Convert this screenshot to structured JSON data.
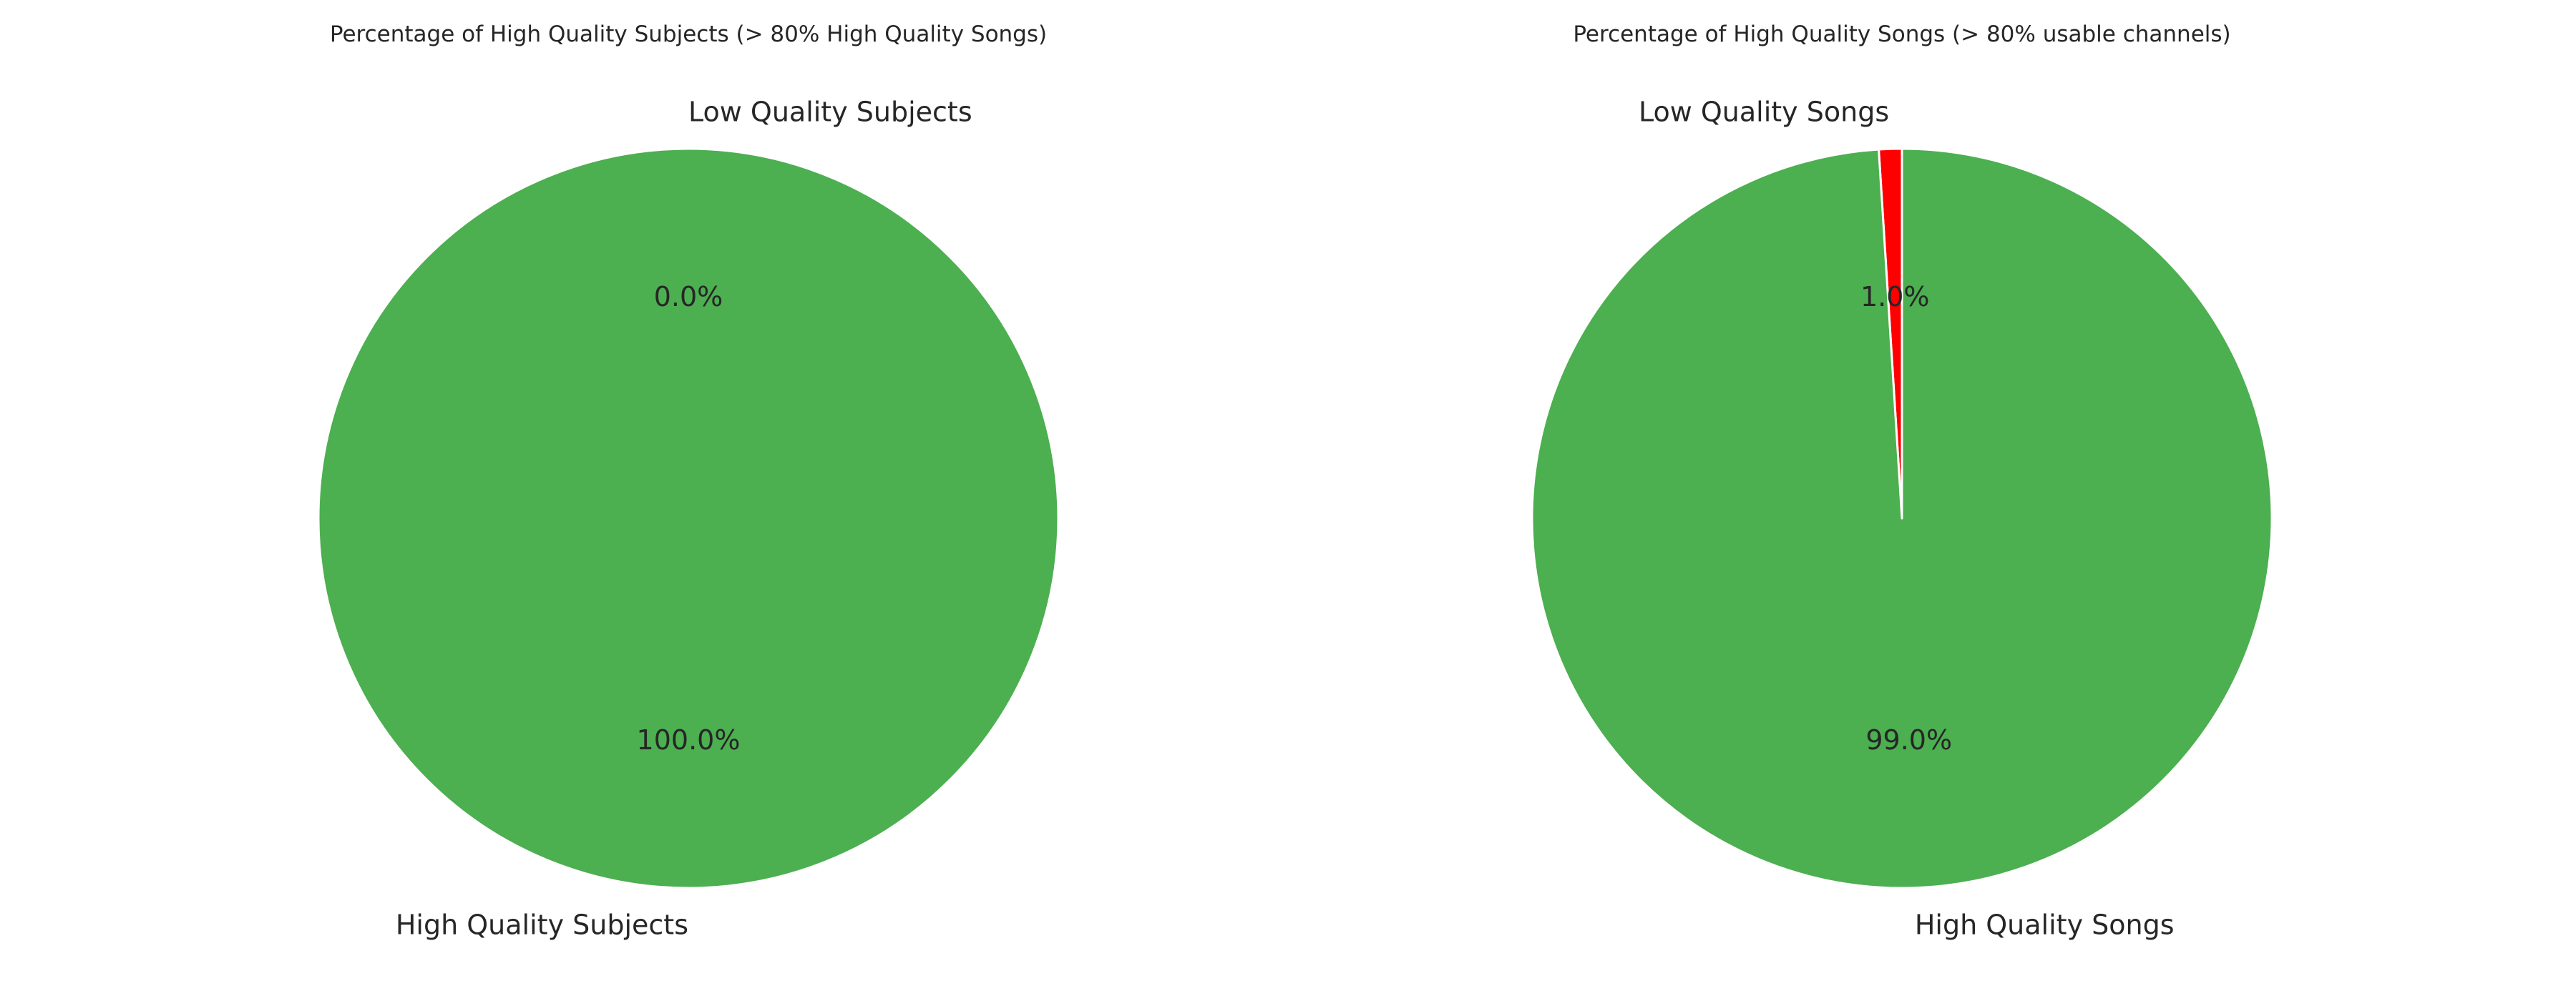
{
  "chart_data": [
    {
      "type": "pie",
      "title": "Percentage of High Quality Subjects (> 80% High Quality Songs)",
      "slices": [
        {
          "label": "Low Quality Subjects",
          "value": 0.0,
          "pct_label": "0.0%",
          "color": "#ff0000"
        },
        {
          "label": "High Quality Subjects",
          "value": 100.0,
          "pct_label": "100.0%",
          "color": "#4caf50"
        }
      ],
      "start_angle": 90,
      "direction": "counterclockwise"
    },
    {
      "type": "pie",
      "title": "Percentage of High Quality Songs (> 80% usable channels)",
      "slices": [
        {
          "label": "Low Quality Songs",
          "value": 1.0,
          "pct_label": "1.0%",
          "color": "#ff0000"
        },
        {
          "label": "High Quality Songs",
          "value": 99.0,
          "pct_label": "99.0%",
          "color": "#4caf50"
        }
      ],
      "start_angle": 90,
      "direction": "counterclockwise"
    }
  ]
}
